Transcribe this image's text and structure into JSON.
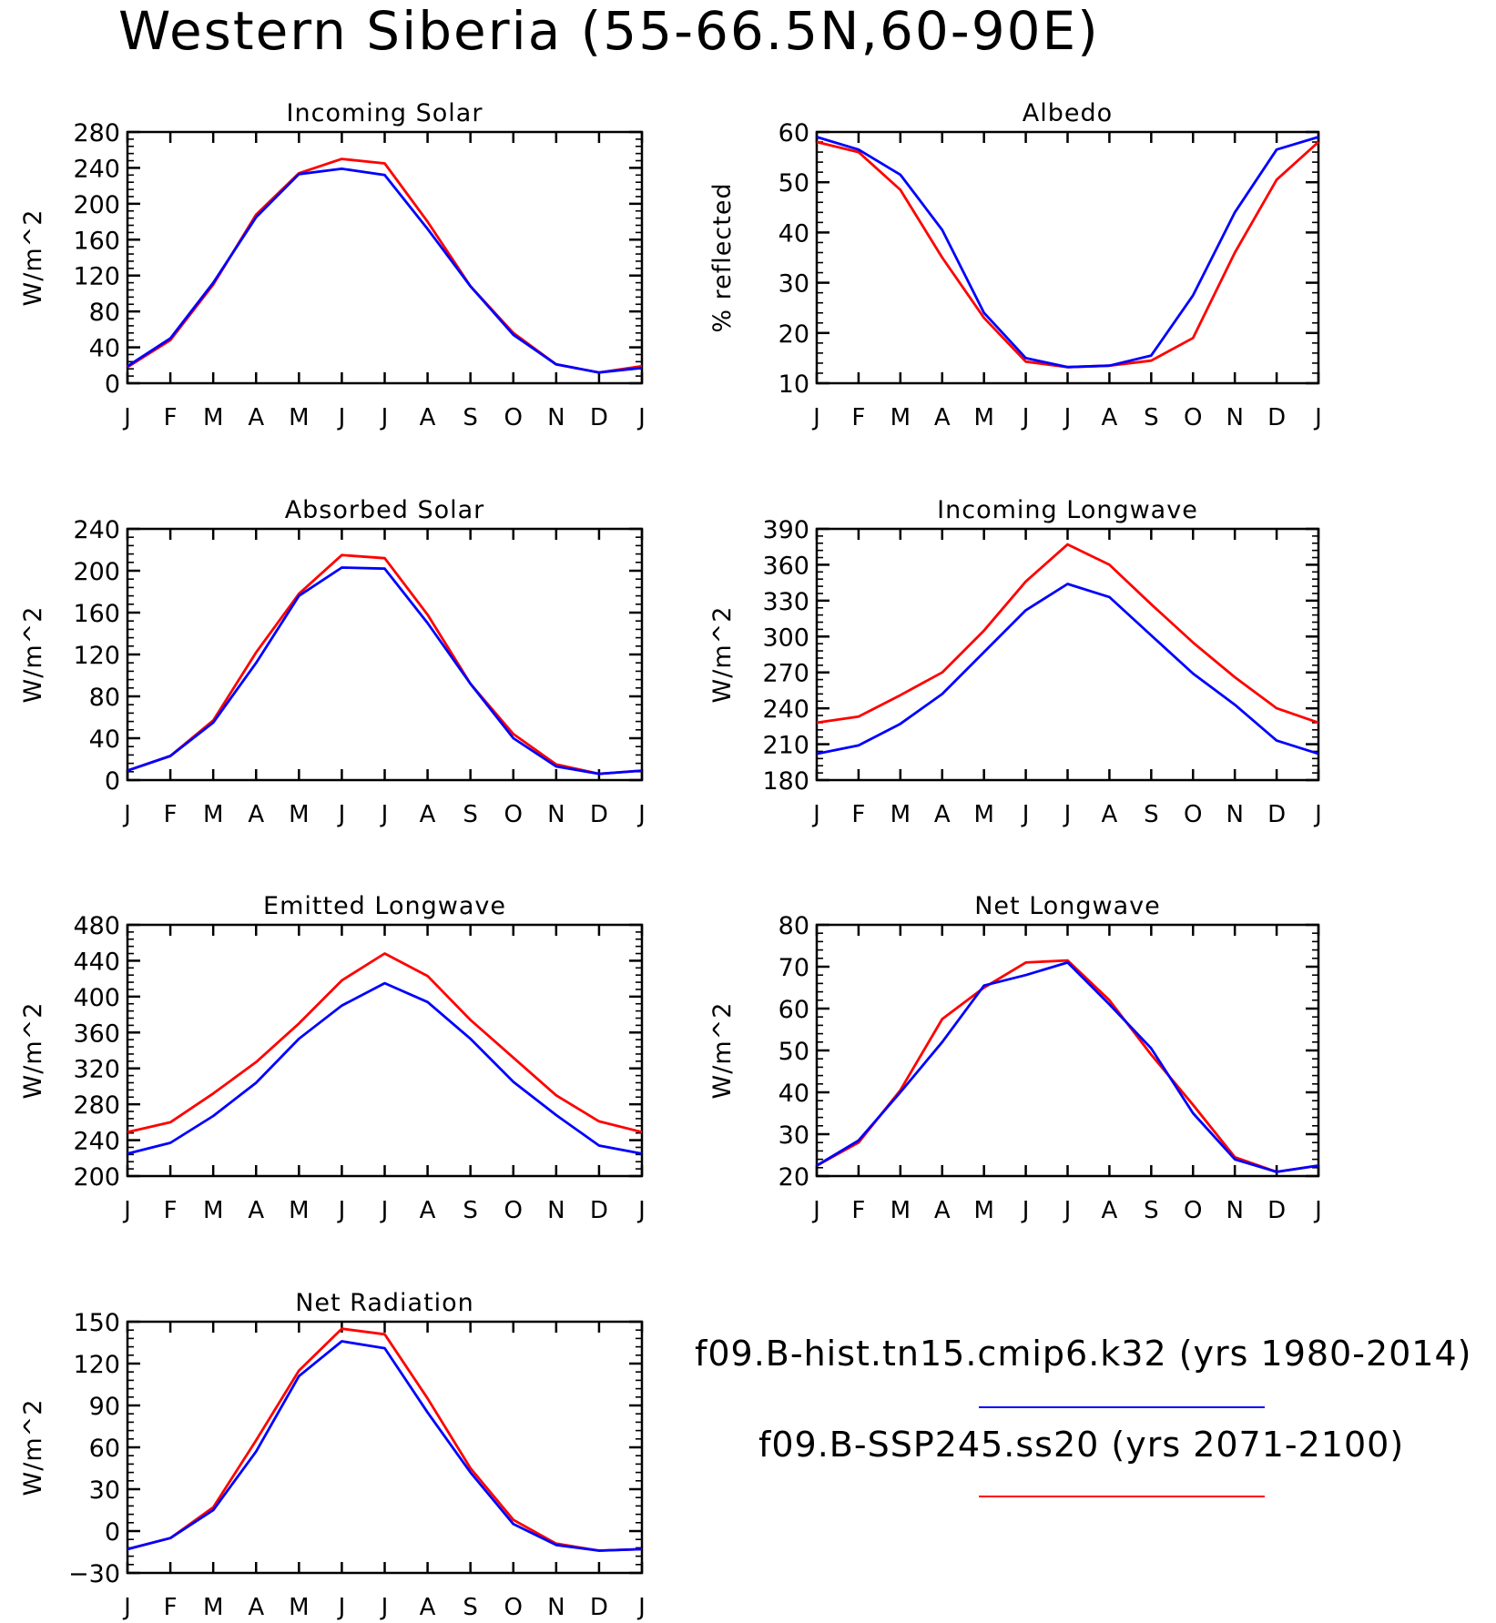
{
  "title": "Western Siberia (55-66.5N,60-90E)",
  "colors": {
    "hist": "#0000ff",
    "ssp": "#ff0000"
  },
  "legend": [
    {
      "label": "f09.B-hist.tn15.cmip6.k32 (yrs 1980-2014)",
      "color": "#0000ff"
    },
    {
      "label": "f09.B-SSP245.ss20 (yrs 2071-2100)",
      "color": "#ff0000"
    }
  ],
  "chart_data": [
    {
      "type": "line",
      "title": "Incoming Solar",
      "ylabel": "W/m^2",
      "categories": [
        "J",
        "F",
        "M",
        "A",
        "M",
        "J",
        "J",
        "A",
        "S",
        "O",
        "N",
        "D",
        "J"
      ],
      "ylim": [
        0,
        280
      ],
      "yticks": [
        0,
        40,
        80,
        120,
        160,
        200,
        240,
        280
      ],
      "series": [
        {
          "key": "hist",
          "values": [
            19,
            50,
            112,
            185,
            233,
            239,
            232,
            172,
            108,
            54,
            21,
            12,
            17
          ]
        },
        {
          "key": "ssp",
          "values": [
            18,
            48,
            110,
            188,
            234,
            250,
            245,
            180,
            108,
            56,
            21,
            12,
            19
          ]
        }
      ]
    },
    {
      "type": "line",
      "title": "Albedo",
      "ylabel": "% reflected",
      "categories": [
        "J",
        "F",
        "M",
        "A",
        "M",
        "J",
        "J",
        "A",
        "S",
        "O",
        "N",
        "D",
        "J"
      ],
      "ylim": [
        10,
        60
      ],
      "yticks": [
        10,
        20,
        30,
        40,
        50,
        60
      ],
      "series": [
        {
          "key": "hist",
          "values": [
            59,
            56.5,
            51.5,
            40.5,
            24,
            15,
            13.2,
            13.5,
            15.5,
            27.5,
            44,
            56.5,
            59
          ]
        },
        {
          "key": "ssp",
          "values": [
            58,
            56,
            48.5,
            35,
            23,
            14.3,
            13.2,
            13.5,
            14.5,
            19,
            36,
            50.5,
            58
          ]
        }
      ]
    },
    {
      "type": "line",
      "title": "Absorbed Solar",
      "ylabel": "W/m^2",
      "categories": [
        "J",
        "F",
        "M",
        "A",
        "M",
        "J",
        "J",
        "A",
        "S",
        "O",
        "N",
        "D",
        "J"
      ],
      "ylim": [
        0,
        240
      ],
      "yticks": [
        0,
        40,
        80,
        120,
        160,
        200,
        240
      ],
      "series": [
        {
          "key": "hist",
          "values": [
            9,
            23,
            55,
            112,
            176,
            203,
            202,
            150,
            92,
            40,
            13,
            6,
            9
          ]
        },
        {
          "key": "ssp",
          "values": [
            9,
            23,
            57,
            122,
            178,
            215,
            212,
            158,
            92,
            44,
            15,
            6,
            9
          ]
        }
      ]
    },
    {
      "type": "line",
      "title": "Incoming Longwave",
      "ylabel": "W/m^2",
      "categories": [
        "J",
        "F",
        "M",
        "A",
        "M",
        "J",
        "J",
        "A",
        "S",
        "O",
        "N",
        "D",
        "J"
      ],
      "ylim": [
        180,
        390
      ],
      "yticks": [
        180,
        210,
        240,
        270,
        300,
        330,
        360,
        390
      ],
      "series": [
        {
          "key": "hist",
          "values": [
            202,
            209,
            227,
            252,
            287,
            322,
            344,
            333,
            301,
            269,
            243,
            213,
            202
          ]
        },
        {
          "key": "ssp",
          "values": [
            228,
            233,
            251,
            270,
            305,
            346,
            377,
            360,
            327,
            295,
            266,
            240,
            228
          ]
        }
      ]
    },
    {
      "type": "line",
      "title": "Emitted Longwave",
      "ylabel": "W/m^2",
      "categories": [
        "J",
        "F",
        "M",
        "A",
        "M",
        "J",
        "J",
        "A",
        "S",
        "O",
        "N",
        "D",
        "J"
      ],
      "ylim": [
        200,
        480
      ],
      "yticks": [
        200,
        240,
        280,
        320,
        360,
        400,
        440,
        480
      ],
      "series": [
        {
          "key": "hist",
          "values": [
            225,
            237,
            267,
            304,
            353,
            390,
            415,
            394,
            353,
            305,
            268,
            234,
            225
          ]
        },
        {
          "key": "ssp",
          "values": [
            249,
            260,
            292,
            327,
            370,
            418,
            448,
            423,
            374,
            332,
            290,
            261,
            249
          ]
        }
      ]
    },
    {
      "type": "line",
      "title": "Net Longwave",
      "ylabel": "W/m^2",
      "categories": [
        "J",
        "F",
        "M",
        "A",
        "M",
        "J",
        "J",
        "A",
        "S",
        "O",
        "N",
        "D",
        "J"
      ],
      "ylim": [
        20,
        80
      ],
      "yticks": [
        20,
        30,
        40,
        50,
        60,
        70,
        80
      ],
      "series": [
        {
          "key": "hist",
          "values": [
            22.5,
            28.5,
            40,
            52,
            65.5,
            68,
            71,
            61,
            50.5,
            35,
            24,
            21,
            22.5
          ]
        },
        {
          "key": "ssp",
          "values": [
            22.5,
            28,
            40.5,
            57.5,
            65,
            71,
            71.5,
            62,
            49,
            37,
            24.5,
            21,
            22.5
          ]
        }
      ]
    },
    {
      "type": "line",
      "title": "Net Radiation",
      "ylabel": "W/m^2",
      "categories": [
        "J",
        "F",
        "M",
        "A",
        "M",
        "J",
        "J",
        "A",
        "S",
        "O",
        "N",
        "D",
        "J"
      ],
      "ylim": [
        -30,
        150
      ],
      "yticks": [
        -30,
        0,
        30,
        60,
        90,
        120,
        150
      ],
      "series": [
        {
          "key": "hist",
          "values": [
            -13,
            -5,
            15,
            57,
            111,
            136,
            131,
            85,
            42,
            5,
            -10,
            -14,
            -13
          ]
        },
        {
          "key": "ssp",
          "values": [
            -13,
            -5,
            17,
            65,
            115,
            145,
            141,
            95,
            45,
            8,
            -9,
            -14,
            -13
          ]
        }
      ]
    }
  ]
}
